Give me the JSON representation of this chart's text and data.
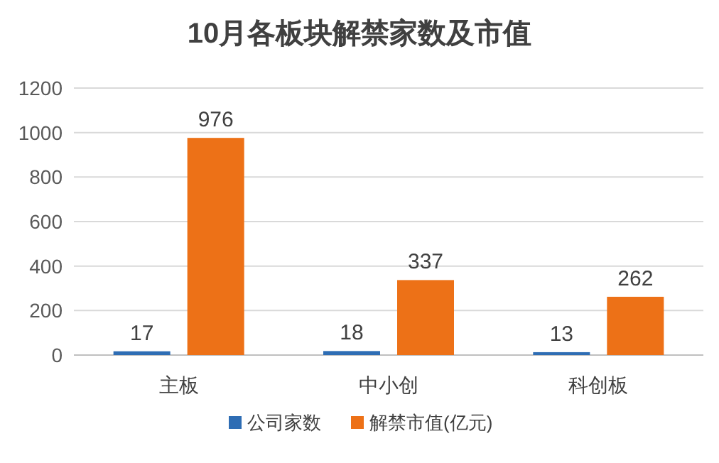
{
  "chart_data": {
    "type": "bar",
    "title": "10月各板块解禁家数及市值",
    "categories": [
      "主板",
      "中小创",
      "科创板"
    ],
    "series": [
      {
        "name": "公司家数",
        "color": "#2e6db4",
        "values": [
          17,
          18,
          13
        ]
      },
      {
        "name": "解禁市值(亿元)",
        "color": "#ed7117",
        "values": [
          976,
          337,
          262
        ]
      }
    ],
    "ylim": [
      0,
      1200
    ],
    "yticks": [
      0,
      200,
      400,
      600,
      800,
      1000,
      1200
    ],
    "grid": "y",
    "legend": "bottom",
    "data_labels": true
  }
}
